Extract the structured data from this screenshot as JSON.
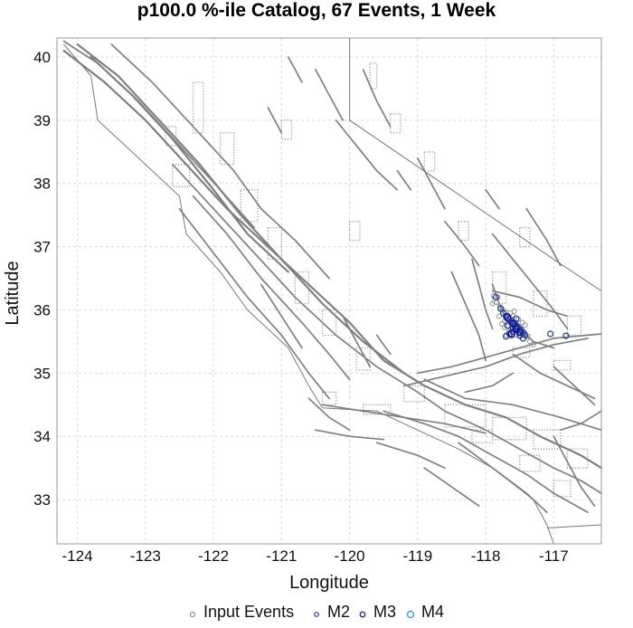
{
  "title": "p100.0 %-ile Catalog, 67 Events, 1 Week",
  "xlabel": "Longitude",
  "ylabel": "Latitude",
  "xlim": [
    -124.3,
    -116.3
  ],
  "ylim": [
    32.3,
    40.3
  ],
  "xticks": [
    {
      "value": -124,
      "label": "-124"
    },
    {
      "value": -123,
      "label": "-123"
    },
    {
      "value": -122,
      "label": "-122"
    },
    {
      "value": -121,
      "label": "-121"
    },
    {
      "value": -120,
      "label": "-120"
    },
    {
      "value": -119,
      "label": "-119"
    },
    {
      "value": -118,
      "label": "-118"
    },
    {
      "value": -117,
      "label": "-117"
    }
  ],
  "yticks": [
    {
      "value": 33,
      "label": "33"
    },
    {
      "value": 34,
      "label": "34"
    },
    {
      "value": 35,
      "label": "35"
    },
    {
      "value": 36,
      "label": "36"
    },
    {
      "value": 37,
      "label": "37"
    },
    {
      "value": 38,
      "label": "38"
    },
    {
      "value": 39,
      "label": "39"
    },
    {
      "value": 40,
      "label": "40"
    }
  ],
  "grid": true,
  "colors": {
    "fault": "#808080",
    "boundary": "#777777",
    "input_events": "#909090",
    "m2": "#1a3a9a",
    "m3": "#1010a0",
    "m4": "#2a8ff0",
    "grid": "#d9d9d9"
  },
  "legend": {
    "placement": "bottom",
    "items": [
      {
        "key": "input_events",
        "label": "Input Events"
      },
      {
        "key": "m2",
        "label": "M2"
      },
      {
        "key": "m3",
        "label": "M3"
      },
      {
        "key": "m4",
        "label": "M4"
      }
    ]
  },
  "chart_data": {
    "type": "scatter",
    "title": "p100.0 %-ile Catalog, 67 Events, 1 Week",
    "xlabel": "Longitude",
    "ylabel": "Latitude",
    "xlim": [
      -124.3,
      -116.3
    ],
    "ylim": [
      32.3,
      40.3
    ],
    "series": [
      {
        "name": "Input Events",
        "points": [
          [
            -117.88,
            36.22
          ],
          [
            -117.82,
            36.2
          ],
          [
            -117.79,
            36.05
          ],
          [
            -117.75,
            36.0
          ],
          [
            -117.7,
            35.96
          ],
          [
            -117.68,
            35.92
          ],
          [
            -117.66,
            35.88
          ],
          [
            -117.63,
            35.86
          ],
          [
            -117.6,
            35.83
          ],
          [
            -117.58,
            35.8
          ],
          [
            -117.56,
            35.78
          ],
          [
            -117.53,
            35.75
          ],
          [
            -117.5,
            35.72
          ],
          [
            -117.48,
            35.7
          ],
          [
            -117.45,
            35.66
          ],
          [
            -117.42,
            35.62
          ],
          [
            -117.38,
            35.58
          ],
          [
            -117.62,
            35.7
          ],
          [
            -117.66,
            35.65
          ],
          [
            -117.7,
            35.6
          ],
          [
            -117.55,
            35.6
          ],
          [
            -117.5,
            35.58
          ],
          [
            -117.35,
            35.5
          ],
          [
            -117.3,
            35.45
          ],
          [
            -117.72,
            35.82
          ],
          [
            -117.76,
            35.78
          ],
          [
            -117.64,
            35.95
          ],
          [
            -117.58,
            35.98
          ],
          [
            -117.52,
            35.85
          ],
          [
            -117.46,
            35.8
          ],
          [
            -117.42,
            35.76
          ],
          [
            -117.62,
            35.58
          ],
          [
            -117.8,
            35.9
          ],
          [
            -117.72,
            35.72
          ],
          [
            -117.68,
            35.8
          ],
          [
            -117.6,
            35.9
          ],
          [
            -117.55,
            35.68
          ],
          [
            -117.48,
            35.64
          ],
          [
            -117.9,
            36.1
          ],
          [
            -117.84,
            36.12
          ]
        ]
      },
      {
        "name": "M2",
        "points": [
          [
            -117.85,
            36.2
          ],
          [
            -117.78,
            36.02
          ],
          [
            -117.74,
            35.95
          ],
          [
            -117.7,
            35.9
          ],
          [
            -117.66,
            35.85
          ],
          [
            -117.62,
            35.82
          ],
          [
            -117.58,
            35.78
          ],
          [
            -117.55,
            35.75
          ],
          [
            -117.52,
            35.72
          ],
          [
            -117.48,
            35.68
          ],
          [
            -117.45,
            35.64
          ],
          [
            -117.42,
            35.6
          ],
          [
            -117.6,
            35.66
          ],
          [
            -117.65,
            35.62
          ],
          [
            -117.7,
            35.58
          ],
          [
            -117.5,
            35.6
          ],
          [
            -117.55,
            35.86
          ],
          [
            -117.68,
            35.75
          ],
          [
            -117.6,
            35.72
          ],
          [
            -117.05,
            35.62
          ],
          [
            -116.82,
            35.59
          ],
          [
            -117.45,
            35.55
          ]
        ]
      },
      {
        "name": "M3",
        "points": [
          [
            -117.68,
            35.88
          ],
          [
            -117.6,
            35.78
          ],
          [
            -117.55,
            35.7
          ],
          [
            -117.5,
            35.65
          ],
          [
            -117.62,
            35.62
          ]
        ]
      },
      {
        "name": "M4",
        "points": []
      }
    ]
  }
}
